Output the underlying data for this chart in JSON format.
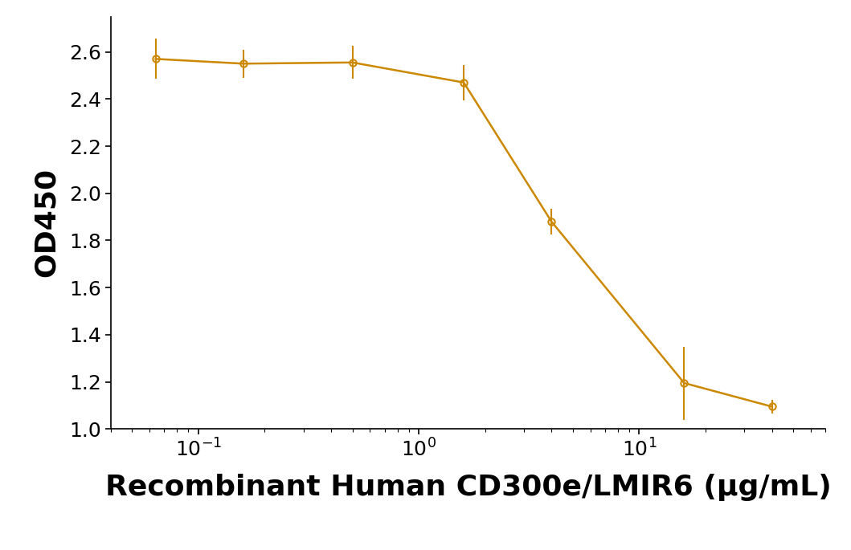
{
  "x_data": [
    0.064,
    0.16,
    0.5,
    1.6,
    4.0,
    16.0,
    40.0
  ],
  "y_data": [
    2.57,
    2.55,
    2.555,
    2.47,
    1.88,
    1.195,
    1.095
  ],
  "y_err": [
    0.085,
    0.06,
    0.07,
    0.075,
    0.055,
    0.155,
    0.03
  ],
  "color": "#CC8800",
  "line_color": "#CC8800",
  "marker": "o",
  "marker_size": 6,
  "marker_facecolor": "none",
  "marker_edgewidth": 1.5,
  "line_width": 1.8,
  "ylabel": "OD450",
  "xlabel": "Recombinant Human CD300e/LMIR6 (μg/mL)",
  "ylim": [
    1.0,
    2.75
  ],
  "yticks": [
    1.0,
    1.2,
    1.4,
    1.6,
    1.8,
    2.0,
    2.2,
    2.4,
    2.6
  ],
  "xlim_min": 0.04,
  "xlim_max": 70.0,
  "background_color": "#ffffff",
  "tick_fontsize": 18,
  "xlabel_fontsize": 26,
  "ylabel_fontsize": 26,
  "xlabel_fontweight": "bold",
  "ylabel_fontweight": "bold"
}
